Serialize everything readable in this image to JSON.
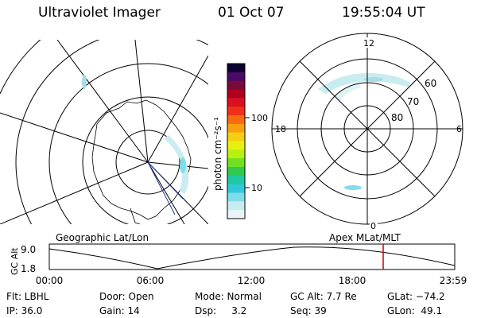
{
  "header": {
    "title": "Ultraviolet Imager",
    "date": "01 Oct 07",
    "time": "19:55:04 UT"
  },
  "colorbar": {
    "label": "photon cm⁻²s⁻¹",
    "ticks": [
      "100",
      "10"
    ],
    "colors": [
      "#0d0033",
      "#4a0a6a",
      "#7a0a3a",
      "#b00020",
      "#d81020",
      "#f03018",
      "#f86a10",
      "#f8a010",
      "#f4d010",
      "#e8f010",
      "#b8f010",
      "#70e020",
      "#30c850",
      "#20c8a0",
      "#30c8d8",
      "#80dce8",
      "#c8ecf0",
      "#e8f4f6"
    ]
  },
  "polar_plot": {
    "mlt_labels": {
      "top": "12",
      "left": "18",
      "right": "6",
      "bottom": "0"
    },
    "lat_labels": [
      "60",
      "70",
      "80"
    ],
    "caption": "Apex MLat/MLT"
  },
  "geo_plot": {
    "caption": "Geographic Lat/Lon"
  },
  "altitude_plot": {
    "axis_title": "GC Alt",
    "y_ticks": [
      "9.0",
      "1.8"
    ],
    "x_ticks": [
      "00:00",
      "06:00",
      "12:00",
      "18:00",
      "23:59"
    ],
    "marker_color": "#cc0000"
  },
  "status": {
    "row1": {
      "flt": "Flt: LBHL",
      "door": "Door: Open",
      "mode": "Mode: Normal",
      "gc_alt": "GC Alt: 7.7 Re",
      "glat": "GLat: −74.2"
    },
    "row2": {
      "ip": "IP: 36.0",
      "gain": "Gain: 14",
      "dsp": "Dsp:     3.2",
      "seq": "Seq: 39",
      "glon": "GLon:  49.1"
    }
  }
}
